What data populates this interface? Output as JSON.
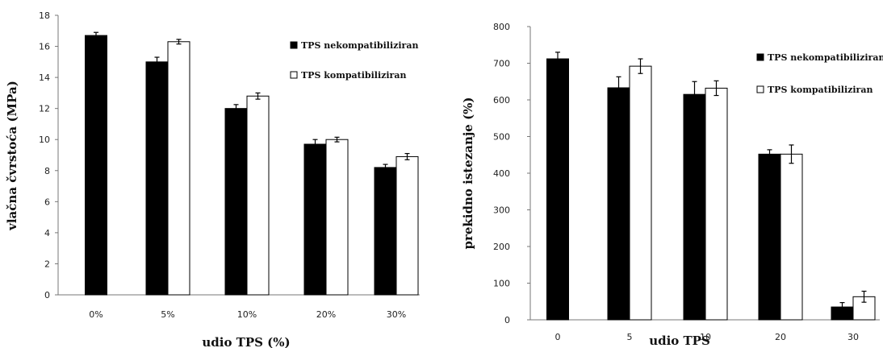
{
  "chart_data": [
    {
      "type": "bar",
      "categories": [
        "0%",
        "5%",
        "10%",
        "20%",
        "30%"
      ],
      "series": [
        {
          "name": "TPS nekompatibiliziran",
          "color": "#000000",
          "values": [
            16.7,
            15.0,
            12.0,
            9.7,
            8.2
          ],
          "errors": [
            0.2,
            0.3,
            0.25,
            0.3,
            0.2
          ]
        },
        {
          "name": "TPS kompatibiliziran",
          "color": "#ffffff",
          "values": [
            null,
            16.3,
            12.8,
            10.0,
            8.9
          ],
          "errors": [
            null,
            0.15,
            0.2,
            0.15,
            0.2
          ]
        }
      ],
      "xlabel": "udio TPS (%)",
      "ylabel": "vlačna čvrstoća (MPa)",
      "ylim": [
        0,
        18
      ],
      "yticks": [
        0,
        2,
        4,
        6,
        8,
        10,
        12,
        14,
        16,
        18
      ],
      "legend_position": "top-right",
      "grid": false
    },
    {
      "type": "bar",
      "categories": [
        "0",
        "5",
        "10",
        "20",
        "30"
      ],
      "series": [
        {
          "name": "TPS nekompatibiliziran",
          "color": "#000000",
          "values": [
            712,
            633,
            615,
            452,
            35
          ],
          "errors": [
            18,
            30,
            35,
            12,
            12
          ]
        },
        {
          "name": "TPS kompatibiliziran",
          "color": "#ffffff",
          "values": [
            null,
            692,
            632,
            452,
            63
          ],
          "errors": [
            null,
            20,
            20,
            25,
            15
          ]
        }
      ],
      "xlabel": "udio TPS",
      "ylabel": "prekidno istezanje (%)",
      "ylim": [
        0,
        800
      ],
      "yticks": [
        0,
        100,
        200,
        300,
        400,
        500,
        600,
        700,
        800
      ],
      "legend_position": "top-right",
      "grid": false
    }
  ]
}
